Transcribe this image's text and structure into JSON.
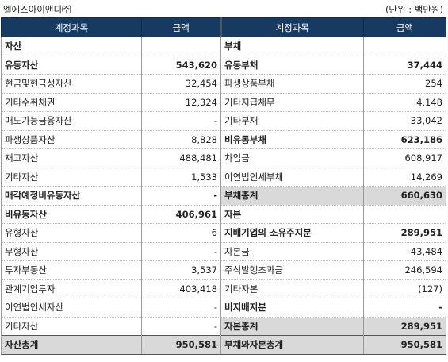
{
  "company": "엘에스아이앤디㈜",
  "unit": "(단위 : 백만원)",
  "headers": [
    "계정과목",
    "금액",
    "계정과목",
    "금액"
  ],
  "rows": [
    {
      "l": {
        "label": "자산",
        "value": "",
        "bold": true,
        "indent": 0
      },
      "r": {
        "label": "부채",
        "value": "",
        "bold": true,
        "indent": 0
      }
    },
    {
      "l": {
        "label": "유동자산",
        "value": "543,620",
        "bold": true,
        "indent": 0
      },
      "r": {
        "label": "유동부채",
        "value": "37,444",
        "bold": true,
        "indent": 0
      }
    },
    {
      "l": {
        "label": "현금및현금성자산",
        "value": "32,454",
        "indent": 1
      },
      "r": {
        "label": "파생상품부채",
        "value": "254",
        "indent": 1
      }
    },
    {
      "l": {
        "label": "기타수취채권",
        "value": "12,324",
        "indent": 1
      },
      "r": {
        "label": "기타지급채무",
        "value": "4,148",
        "indent": 1
      }
    },
    {
      "l": {
        "label": "매도가능금융자산",
        "value": "-",
        "indent": 1
      },
      "r": {
        "label": "기타부채",
        "value": "33,042",
        "indent": 1
      }
    },
    {
      "l": {
        "label": "파생상품자산",
        "value": "8,828",
        "indent": 1
      },
      "r": {
        "label": "비유동부채",
        "value": "623,186",
        "bold": true,
        "indent": 0
      }
    },
    {
      "l": {
        "label": "재고자산",
        "value": "488,481",
        "indent": 1
      },
      "r": {
        "label": "차입금",
        "value": "608,917",
        "indent": 1
      }
    },
    {
      "l": {
        "label": "기타자산",
        "value": "1,533",
        "indent": 1
      },
      "r": {
        "label": "이연법인세부채",
        "value": "14,269",
        "indent": 1
      }
    },
    {
      "l": {
        "label": "매각예정비유동자산",
        "value": "-",
        "bold": true,
        "indent": 0
      },
      "r": {
        "label": "부채총계",
        "value": "660,630",
        "bold": true,
        "indent": 0,
        "shade": true
      }
    },
    {
      "l": {
        "label": "비유동자산",
        "value": "406,961",
        "bold": true,
        "indent": 0
      },
      "r": {
        "label": "자본",
        "value": "",
        "bold": true,
        "indent": 0
      }
    },
    {
      "l": {
        "label": "유형자산",
        "value": "6",
        "indent": 1
      },
      "r": {
        "label": "지배기업의 소유주지분",
        "value": "289,951",
        "bold": true,
        "indent": 0
      }
    },
    {
      "l": {
        "label": "무형자산",
        "value": "-",
        "indent": 1
      },
      "r": {
        "label": "자본금",
        "value": "43,484",
        "indent": 1
      }
    },
    {
      "l": {
        "label": "투자부동산",
        "value": "3,537",
        "indent": 1
      },
      "r": {
        "label": "주식발행초과금",
        "value": "246,594",
        "indent": 1
      }
    },
    {
      "l": {
        "label": "관계기업투자",
        "value": "403,418",
        "indent": 1
      },
      "r": {
        "label": "기타자본",
        "value": "(127)",
        "indent": 1
      }
    },
    {
      "l": {
        "label": "이연법인세자산",
        "value": "-",
        "indent": 1
      },
      "r": {
        "label": "비지배지분",
        "value": "-",
        "bold": true,
        "indent": 0
      }
    },
    {
      "l": {
        "label": "기타자산",
        "value": "-",
        "indent": 1
      },
      "r": {
        "label": "자본총계",
        "value": "289,951",
        "bold": true,
        "indent": 0,
        "shade": true
      }
    }
  ],
  "totals": {
    "left_label": "자산총계",
    "left_value": "950,581",
    "right_label": "부채와자본총계",
    "right_value": "950,581"
  }
}
